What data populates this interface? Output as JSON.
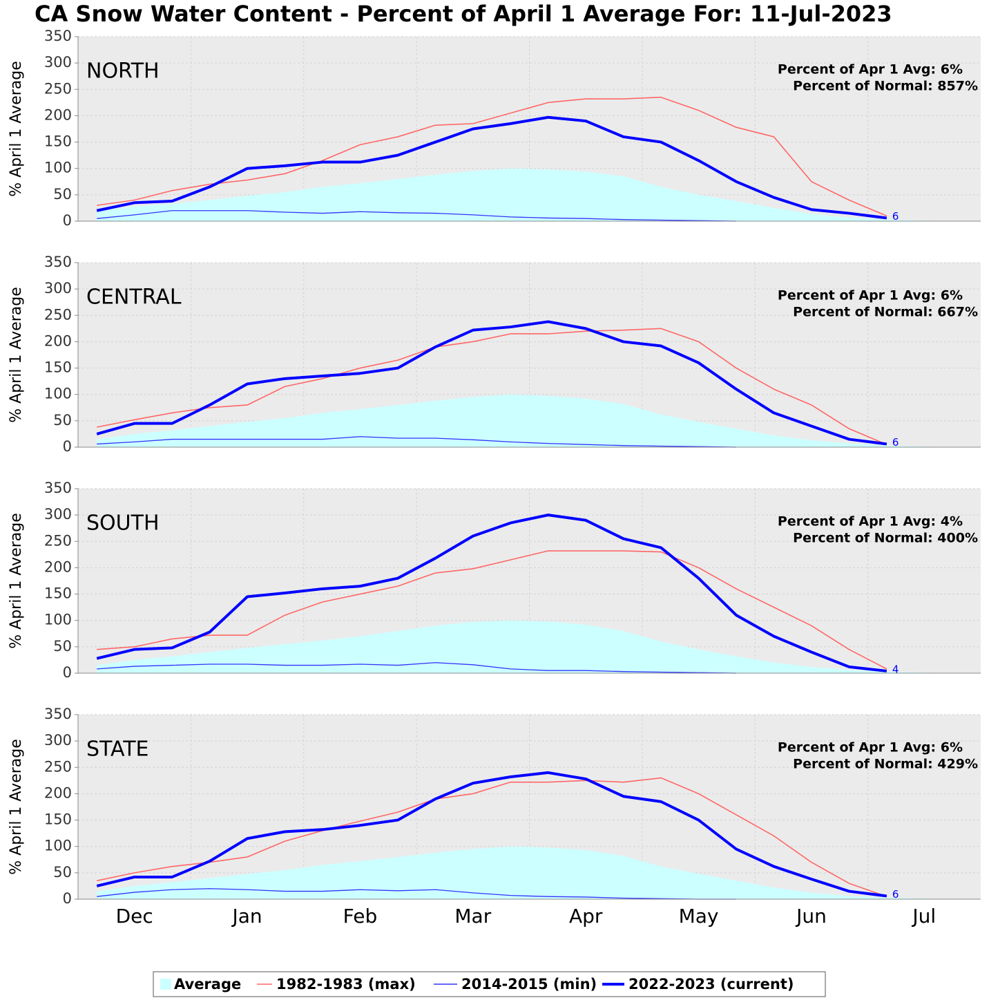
{
  "title": "CA Snow Water Content - Percent of April 1 Average For: 11-Jul-2023",
  "chart_data": [
    {
      "type": "line",
      "title": "NORTH",
      "ylabel": "% April 1 Average",
      "annotations": [
        "Percent of Apr 1 Avg: 6%",
        "Percent of Normal: 857%"
      ],
      "end_label": 6,
      "categories": [
        null,
        "Dec",
        null,
        null,
        "Jan",
        null,
        null,
        "Feb",
        null,
        null,
        "Mar",
        null,
        null,
        "Apr",
        null,
        null,
        "May",
        null,
        null,
        "Jun",
        null,
        null,
        "Jul",
        null
      ],
      "ylim": [
        0,
        350
      ],
      "yticks": [
        0,
        50,
        100,
        150,
        200,
        250,
        300,
        350
      ],
      "grid": true,
      "series": [
        {
          "name": "Average",
          "type": "area",
          "color": "#ccffff",
          "values": [
            20,
            28,
            33,
            40,
            48,
            55,
            65,
            72,
            80,
            88,
            95,
            100,
            98,
            94,
            85,
            65,
            50,
            38,
            25,
            14,
            7,
            3,
            1,
            0
          ]
        },
        {
          "name": "1982-1983 (max)",
          "color": "#ff6666",
          "values": [
            30,
            40,
            58,
            70,
            78,
            90,
            115,
            145,
            160,
            182,
            185,
            205,
            225,
            232,
            232,
            235,
            210,
            178,
            160,
            75,
            40,
            10,
            null,
            null
          ]
        },
        {
          "name": "2014-2015 (min)",
          "color": "#3333ff",
          "values": [
            5,
            12,
            20,
            20,
            20,
            17,
            15,
            18,
            16,
            15,
            12,
            8,
            6,
            5,
            3,
            2,
            1,
            0,
            null,
            null,
            null,
            null,
            null,
            null
          ]
        },
        {
          "name": "2022-2023 (current)",
          "color": "#0000ff",
          "values": [
            20,
            35,
            38,
            65,
            100,
            105,
            112,
            112,
            125,
            150,
            175,
            185,
            197,
            190,
            160,
            150,
            115,
            75,
            45,
            22,
            15,
            6,
            null,
            null
          ]
        }
      ]
    },
    {
      "type": "line",
      "title": "CENTRAL",
      "ylabel": "% April 1 Average",
      "annotations": [
        "Percent of Apr 1 Avg: 6%",
        "Percent of Normal: 667%"
      ],
      "end_label": 6,
      "categories": [
        null,
        "Dec",
        null,
        null,
        "Jan",
        null,
        null,
        "Feb",
        null,
        null,
        "Mar",
        null,
        null,
        "Apr",
        null,
        null,
        "May",
        null,
        null,
        "Jun",
        null,
        null,
        "Jul",
        null
      ],
      "ylim": [
        0,
        350
      ],
      "yticks": [
        0,
        50,
        100,
        150,
        200,
        250,
        300,
        350
      ],
      "grid": true,
      "series": [
        {
          "name": "Average",
          "type": "area",
          "color": "#ccffff",
          "values": [
            15,
            25,
            32,
            40,
            48,
            55,
            65,
            72,
            80,
            88,
            95,
            100,
            97,
            92,
            82,
            62,
            48,
            35,
            22,
            13,
            7,
            3,
            1,
            0
          ]
        },
        {
          "name": "1982-1983 (max)",
          "color": "#ff6666",
          "values": [
            38,
            52,
            65,
            75,
            80,
            115,
            130,
            150,
            165,
            190,
            200,
            215,
            215,
            220,
            222,
            225,
            200,
            150,
            110,
            80,
            35,
            5,
            null,
            null
          ]
        },
        {
          "name": "2014-2015 (min)",
          "color": "#3333ff",
          "values": [
            6,
            10,
            15,
            15,
            15,
            15,
            15,
            20,
            17,
            17,
            14,
            10,
            7,
            5,
            3,
            2,
            1,
            0,
            null,
            null,
            null,
            null,
            null,
            null
          ]
        },
        {
          "name": "2022-2023 (current)",
          "color": "#0000ff",
          "values": [
            25,
            45,
            45,
            80,
            120,
            130,
            135,
            140,
            150,
            190,
            222,
            228,
            238,
            225,
            200,
            192,
            160,
            110,
            65,
            40,
            15,
            6,
            null,
            null
          ]
        }
      ]
    },
    {
      "type": "line",
      "title": "SOUTH",
      "ylabel": "% April 1 Average",
      "annotations": [
        "Percent of Apr 1 Avg: 4%",
        "Percent of Normal: 400%"
      ],
      "end_label": 4,
      "categories": [
        null,
        "Dec",
        null,
        null,
        "Jan",
        null,
        null,
        "Feb",
        null,
        null,
        "Mar",
        null,
        null,
        "Apr",
        null,
        null,
        "May",
        null,
        null,
        "Jun",
        null,
        null,
        "Jul",
        null
      ],
      "ylim": [
        0,
        350
      ],
      "yticks": [
        0,
        50,
        100,
        150,
        200,
        250,
        300,
        350
      ],
      "grid": true,
      "series": [
        {
          "name": "Average",
          "type": "area",
          "color": "#ccffff",
          "values": [
            15,
            25,
            32,
            40,
            48,
            55,
            62,
            70,
            80,
            90,
            97,
            100,
            98,
            92,
            80,
            60,
            45,
            32,
            20,
            12,
            6,
            3,
            1,
            0
          ]
        },
        {
          "name": "1982-1983 (max)",
          "color": "#ff6666",
          "values": [
            45,
            50,
            65,
            72,
            72,
            110,
            135,
            150,
            165,
            190,
            198,
            215,
            232,
            232,
            232,
            230,
            200,
            160,
            125,
            90,
            45,
            8,
            null,
            null
          ]
        },
        {
          "name": "2014-2015 (min)",
          "color": "#3333ff",
          "values": [
            8,
            13,
            15,
            17,
            17,
            15,
            15,
            17,
            15,
            20,
            16,
            8,
            5,
            5,
            3,
            2,
            1,
            0,
            null,
            null,
            null,
            null,
            null,
            null
          ]
        },
        {
          "name": "2022-2023 (current)",
          "color": "#0000ff",
          "values": [
            28,
            45,
            48,
            78,
            145,
            152,
            160,
            165,
            180,
            218,
            260,
            285,
            300,
            290,
            255,
            238,
            180,
            110,
            70,
            40,
            12,
            4,
            null,
            null
          ]
        }
      ]
    },
    {
      "type": "line",
      "title": "STATE",
      "ylabel": "% April 1 Average",
      "annotations": [
        "Percent of Apr 1 Avg: 6%",
        "Percent of Normal: 429%"
      ],
      "end_label": 6,
      "categories": [
        null,
        "Dec",
        null,
        null,
        "Jan",
        null,
        null,
        "Feb",
        null,
        null,
        "Mar",
        null,
        null,
        "Apr",
        null,
        null,
        "May",
        null,
        null,
        "Jun",
        null,
        null,
        "Jul",
        null
      ],
      "ylim": [
        0,
        350
      ],
      "yticks": [
        0,
        50,
        100,
        150,
        200,
        250,
        300,
        350
      ],
      "grid": true,
      "series": [
        {
          "name": "Average",
          "type": "area",
          "color": "#ccffff",
          "values": [
            15,
            25,
            32,
            40,
            48,
            55,
            65,
            72,
            80,
            88,
            95,
            100,
            98,
            93,
            82,
            62,
            48,
            35,
            22,
            12,
            6,
            3,
            1,
            0
          ]
        },
        {
          "name": "1982-1983 (max)",
          "color": "#ff6666",
          "values": [
            35,
            50,
            62,
            70,
            80,
            110,
            130,
            148,
            165,
            190,
            200,
            222,
            222,
            225,
            222,
            230,
            200,
            160,
            120,
            70,
            30,
            5,
            null,
            null
          ]
        },
        {
          "name": "2014-2015 (min)",
          "color": "#3333ff",
          "values": [
            5,
            13,
            18,
            20,
            18,
            15,
            15,
            18,
            16,
            18,
            12,
            7,
            5,
            4,
            2,
            1,
            0,
            0,
            null,
            null,
            null,
            null,
            null,
            null
          ]
        },
        {
          "name": "2022-2023 (current)",
          "color": "#0000ff",
          "values": [
            25,
            42,
            42,
            72,
            115,
            128,
            132,
            140,
            150,
            190,
            220,
            232,
            240,
            228,
            195,
            185,
            150,
            95,
            62,
            38,
            15,
            6,
            null,
            null
          ]
        }
      ]
    }
  ]
}
